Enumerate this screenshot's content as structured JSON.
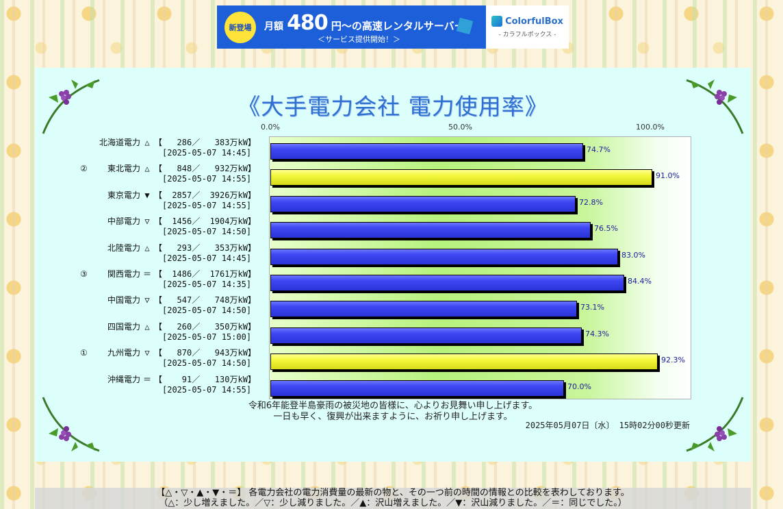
{
  "banner": {
    "badge": "新登場",
    "prefix": "月額",
    "price": "480",
    "suffix": "円～の高速レンタルサーバー",
    "sub": "＜サービス提供開始！＞",
    "brand": "ColorfulBox",
    "brand_kana": "- カラフルボックス -"
  },
  "title": "《大手電力会社 電力使用率》",
  "axis_labels": [
    "0.0%",
    "50.0%",
    "100.0%"
  ],
  "chart_data": {
    "type": "bar",
    "orientation": "horizontal",
    "xlim": [
      0,
      100
    ],
    "x_ticks": [
      "0.0%",
      "50.0%",
      "100.0%"
    ],
    "unit": "%",
    "rows": [
      {
        "company": "北海道電力",
        "rank": "",
        "trend": "△",
        "usage": "286",
        "capacity": "383",
        "unit": "万kW",
        "timestamp": "2025-05-07 14:45",
        "value": 74.7,
        "label": "74.7%",
        "color": "blue"
      },
      {
        "company": "東北電力",
        "rank": "②",
        "trend": "△",
        "usage": "848",
        "capacity": "932",
        "unit": "万kW",
        "timestamp": "2025-05-07 14:55",
        "value": 91.0,
        "label": "91.0%",
        "color": "yellow"
      },
      {
        "company": "東京電力",
        "rank": "",
        "trend": "▼",
        "usage": "2857",
        "capacity": "3926",
        "unit": "万kW",
        "timestamp": "2025-05-07 14:55",
        "value": 72.8,
        "label": "72.8%",
        "color": "blue"
      },
      {
        "company": "中部電力",
        "rank": "",
        "trend": "▽",
        "usage": "1456",
        "capacity": "1904",
        "unit": "万kW",
        "timestamp": "2025-05-07 14:50",
        "value": 76.5,
        "label": "76.5%",
        "color": "blue"
      },
      {
        "company": "北陸電力",
        "rank": "",
        "trend": "△",
        "usage": "293",
        "capacity": "353",
        "unit": "万kW",
        "timestamp": "2025-05-07 14:45",
        "value": 83.0,
        "label": "83.0%",
        "color": "blue"
      },
      {
        "company": "関西電力",
        "rank": "③",
        "trend": "＝",
        "usage": "1486",
        "capacity": "1761",
        "unit": "万kW",
        "timestamp": "2025-05-07 14:35",
        "value": 84.4,
        "label": "84.4%",
        "color": "blue"
      },
      {
        "company": "中国電力",
        "rank": "",
        "trend": "▽",
        "usage": "547",
        "capacity": "748",
        "unit": "万kW",
        "timestamp": "2025-05-07 14:50",
        "value": 73.1,
        "label": "73.1%",
        "color": "blue"
      },
      {
        "company": "四国電力",
        "rank": "",
        "trend": "△",
        "usage": "260",
        "capacity": "350",
        "unit": "万kW",
        "timestamp": "2025-05-07 15:00",
        "value": 74.3,
        "label": "74.3%",
        "color": "blue"
      },
      {
        "company": "九州電力",
        "rank": "①",
        "trend": "▽",
        "usage": "870",
        "capacity": "943",
        "unit": "万kW",
        "timestamp": "2025-05-07 14:50",
        "value": 92.3,
        "label": "92.3%",
        "color": "yellow"
      },
      {
        "company": "沖縄電力",
        "rank": "",
        "trend": "＝",
        "usage": "91",
        "capacity": "130",
        "unit": "万kW",
        "timestamp": "2025-05-07 14:55",
        "value": 70.0,
        "label": "70.0%",
        "color": "blue"
      }
    ],
    "colors": {
      "blue": "#3e47f2",
      "yellow": "#f3f73a"
    }
  },
  "message_line1": "令和6年能登半島豪雨の被災地の皆様に、心よりお見舞い申し上げます。",
  "message_line2": "一日も早く、復興が出来ますように、お祈り申し上げます。",
  "updated": "2025年05月07日〔水〕 15時02分00秒更新",
  "footer_line1": "【△・▽・▲・▼・＝】 各電力会社の電力消費量の最新の物と、その一つ前の時間の情報との比較を表わしております。",
  "footer_line2": "（△：少し増えました。／▽：少し減りました。／▲：沢山増えました。／▼：沢山減りました。／＝：同じでした。）"
}
